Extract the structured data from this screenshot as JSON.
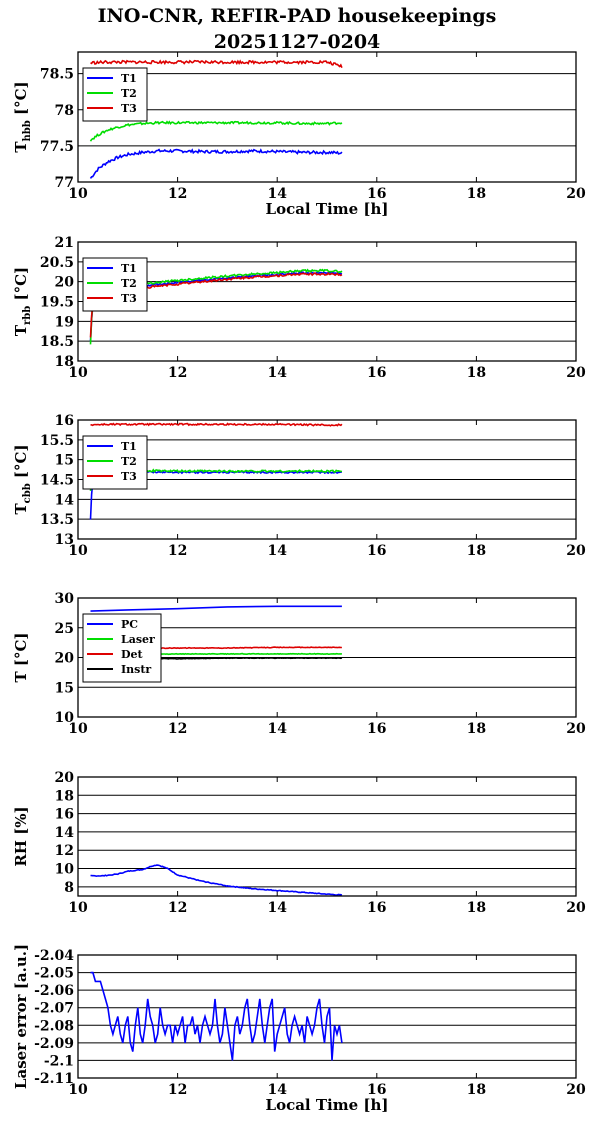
{
  "figure": {
    "title_line1": "INO-CNR, REFIR-PAD housekeepings",
    "title_line2": "20251127-0204"
  },
  "chart_data": [
    {
      "id": "hbb",
      "type": "line",
      "ylabel_main": "T",
      "ylabel_sub": "hbb",
      "ylabel_unit": " [°C]",
      "xlabel": "Local Time [h]",
      "xlim": [
        10,
        20
      ],
      "ylim": [
        77,
        78.8
      ],
      "xticks": [
        10,
        12,
        14,
        16,
        18,
        20
      ],
      "xtick_labels": [
        "10",
        "12",
        "14",
        "16",
        "18",
        "20"
      ],
      "yticks": [
        77,
        77.5,
        78,
        78.5
      ],
      "ytick_labels": [
        "77",
        "77.5",
        "78",
        "78.5"
      ],
      "grid": true,
      "legend": "top-left",
      "series": [
        {
          "name": "T1",
          "color": "#0000ff",
          "x": [
            10.25,
            10.4,
            10.6,
            10.8,
            11.0,
            11.3,
            11.6,
            12.0,
            12.5,
            13.0,
            13.5,
            14.0,
            14.5,
            15.0,
            15.3
          ],
          "y": [
            77.05,
            77.18,
            77.28,
            77.34,
            77.38,
            77.41,
            77.43,
            77.43,
            77.42,
            77.42,
            77.43,
            77.42,
            77.41,
            77.41,
            77.4
          ],
          "noise": 0.02
        },
        {
          "name": "T2",
          "color": "#00dd00",
          "x": [
            10.25,
            10.4,
            10.6,
            10.8,
            11.0,
            11.3,
            11.6,
            12.0,
            12.5,
            13.0,
            13.5,
            14.0,
            14.5,
            15.0,
            15.3
          ],
          "y": [
            77.58,
            77.65,
            77.72,
            77.76,
            77.79,
            77.81,
            77.82,
            77.82,
            77.82,
            77.82,
            77.82,
            77.82,
            77.81,
            77.81,
            77.82
          ],
          "noise": 0.015
        },
        {
          "name": "T3",
          "color": "#dd0000",
          "x": [
            10.25,
            10.6,
            11.0,
            11.5,
            12.0,
            12.5,
            13.0,
            13.5,
            14.0,
            14.5,
            15.0,
            15.3
          ],
          "y": [
            78.65,
            78.66,
            78.66,
            78.66,
            78.66,
            78.66,
            78.66,
            78.66,
            78.66,
            78.66,
            78.66,
            78.6
          ],
          "noise": 0.02
        }
      ]
    },
    {
      "id": "rbb",
      "type": "line",
      "ylabel_main": "T",
      "ylabel_sub": "rbb",
      "ylabel_unit": " [°C]",
      "xlabel": "",
      "xlim": [
        10,
        20
      ],
      "ylim": [
        18,
        21
      ],
      "xticks": [
        10,
        12,
        14,
        16,
        18,
        20
      ],
      "xtick_labels": [
        "10",
        "12",
        "14",
        "16",
        "18",
        "20"
      ],
      "yticks": [
        18,
        18.5,
        19,
        19.5,
        20,
        20.5,
        21
      ],
      "ytick_labels": [
        "18",
        "18.5",
        "19",
        "19.5",
        "20",
        "20.5",
        "21"
      ],
      "grid": true,
      "legend": "top-left",
      "series": [
        {
          "name": "T1",
          "color": "#0000ff",
          "x": [
            10.25,
            10.28,
            10.32,
            10.5,
            11.0,
            11.5,
            12.0,
            12.5,
            13.0,
            13.5,
            14.0,
            14.5,
            15.0,
            15.3
          ],
          "y": [
            18.5,
            19.2,
            19.6,
            19.75,
            19.85,
            19.92,
            19.98,
            20.04,
            20.09,
            20.14,
            20.18,
            20.22,
            20.22,
            20.2
          ],
          "noise": 0.02
        },
        {
          "name": "T2",
          "color": "#00dd00",
          "x": [
            10.25,
            10.28,
            10.32,
            10.5,
            11.0,
            11.5,
            12.0,
            12.5,
            13.0,
            13.5,
            14.0,
            14.5,
            15.0,
            15.3
          ],
          "y": [
            18.4,
            19.25,
            19.65,
            19.8,
            19.9,
            19.97,
            20.03,
            20.09,
            20.14,
            20.19,
            20.23,
            20.27,
            20.28,
            20.25
          ],
          "noise": 0.025
        },
        {
          "name": "T3",
          "color": "#dd0000",
          "x": [
            10.25,
            10.28,
            10.32,
            10.5,
            11.0,
            11.5,
            12.0,
            12.5,
            13.0,
            13.5,
            14.0,
            14.5,
            15.0,
            15.3
          ],
          "y": [
            18.6,
            19.3,
            19.55,
            19.7,
            19.8,
            19.87,
            19.94,
            20.0,
            20.06,
            20.11,
            20.15,
            20.19,
            20.19,
            20.18
          ],
          "noise": 0.025
        }
      ]
    },
    {
      "id": "cbb",
      "type": "line",
      "ylabel_main": "T",
      "ylabel_sub": "cbb",
      "ylabel_unit": " [°C]",
      "xlabel": "",
      "xlim": [
        10,
        20
      ],
      "ylim": [
        13,
        16
      ],
      "xticks": [
        10,
        12,
        14,
        16,
        18,
        20
      ],
      "xtick_labels": [
        "10",
        "12",
        "14",
        "16",
        "18",
        "20"
      ],
      "yticks": [
        13,
        13.5,
        14,
        14.5,
        15,
        15.5,
        16
      ],
      "ytick_labels": [
        "13",
        "13.5",
        "14",
        "14.5",
        "15",
        "15.5",
        "16"
      ],
      "grid": true,
      "legend": "top-left",
      "series": [
        {
          "name": "T1",
          "color": "#0000ff",
          "x": [
            10.25,
            10.28,
            10.32,
            10.5,
            11.0,
            12.0,
            13.0,
            14.0,
            15.0,
            15.3
          ],
          "y": [
            13.5,
            14.3,
            14.6,
            14.7,
            14.7,
            14.68,
            14.68,
            14.68,
            14.68,
            14.68
          ],
          "noise": 0.02
        },
        {
          "name": "T2",
          "color": "#00dd00",
          "x": [
            10.25,
            10.28,
            10.32,
            10.5,
            11.0,
            12.0,
            13.0,
            14.0,
            15.0,
            15.3
          ],
          "y": [
            14.2,
            14.5,
            14.65,
            14.72,
            14.73,
            14.71,
            14.71,
            14.71,
            14.71,
            14.71
          ],
          "noise": 0.025
        },
        {
          "name": "T3",
          "color": "#dd0000",
          "x": [
            10.25,
            10.6,
            11.0,
            12.0,
            13.0,
            14.0,
            15.0,
            15.3
          ],
          "y": [
            15.88,
            15.89,
            15.89,
            15.89,
            15.89,
            15.89,
            15.87,
            15.88
          ],
          "noise": 0.02
        }
      ]
    },
    {
      "id": "temp",
      "type": "line",
      "ylabel_main": "T [°C]",
      "ylabel_sub": "",
      "ylabel_unit": "",
      "xlabel": "",
      "xlim": [
        10,
        20
      ],
      "ylim": [
        10,
        30
      ],
      "xticks": [
        10,
        12,
        14,
        16,
        18,
        20
      ],
      "xtick_labels": [
        "10",
        "12",
        "14",
        "16",
        "18",
        "20"
      ],
      "yticks": [
        10,
        15,
        20,
        25,
        30
      ],
      "ytick_labels": [
        "10",
        "15",
        "20",
        "25",
        "30"
      ],
      "grid": true,
      "legend": "top-left",
      "series": [
        {
          "name": "PC",
          "color": "#0000ff",
          "x": [
            10.25,
            11.0,
            12.0,
            13.0,
            14.0,
            15.3
          ],
          "y": [
            27.8,
            28.0,
            28.2,
            28.5,
            28.6,
            28.6
          ],
          "noise": 0.0
        },
        {
          "name": "Laser",
          "color": "#00dd00",
          "x": [
            10.25,
            11.0,
            12.0,
            13.0,
            14.0,
            15.3
          ],
          "y": [
            20.5,
            20.5,
            20.6,
            20.6,
            20.6,
            20.6
          ],
          "noise": 0.05
        },
        {
          "name": "Det",
          "color": "#dd0000",
          "x": [
            10.25,
            11.0,
            12.0,
            13.0,
            14.0,
            15.3
          ],
          "y": [
            21.4,
            21.5,
            21.6,
            21.6,
            21.7,
            21.7
          ],
          "noise": 0.05
        },
        {
          "name": "Instr",
          "color": "#000000",
          "x": [
            10.25,
            11.0,
            12.0,
            13.0,
            14.0,
            15.3
          ],
          "y": [
            19.7,
            19.8,
            19.8,
            19.9,
            19.9,
            19.9
          ],
          "noise": 0.04
        }
      ]
    },
    {
      "id": "rh",
      "type": "line",
      "ylabel_main": "RH [%]",
      "ylabel_sub": "",
      "ylabel_unit": "",
      "xlabel": "",
      "xlim": [
        10,
        20
      ],
      "ylim": [
        7,
        20
      ],
      "xticks": [
        10,
        12,
        14,
        16,
        18,
        20
      ],
      "xtick_labels": [
        "10",
        "12",
        "14",
        "16",
        "18",
        "20"
      ],
      "yticks": [
        8,
        10,
        12,
        14,
        16,
        18,
        20
      ],
      "ytick_labels": [
        "8",
        "10",
        "12",
        "14",
        "16",
        "18",
        "20"
      ],
      "grid": true,
      "legend": "none",
      "series": [
        {
          "name": "",
          "color": "#0000ff",
          "x": [
            10.25,
            10.5,
            10.8,
            11.0,
            11.3,
            11.5,
            11.6,
            11.8,
            12.0,
            12.5,
            13.0,
            13.5,
            14.0,
            14.5,
            15.0,
            15.3
          ],
          "y": [
            9.2,
            9.2,
            9.4,
            9.7,
            9.9,
            10.3,
            10.4,
            10.0,
            9.3,
            8.6,
            8.1,
            7.8,
            7.6,
            7.4,
            7.2,
            7.1
          ],
          "noise": 0.04
        }
      ]
    },
    {
      "id": "laser",
      "type": "line",
      "ylabel_main": "Laser error [a.u.]",
      "ylabel_sub": "",
      "ylabel_unit": "",
      "xlabel": "Local Time [h]",
      "xlim": [
        10,
        20
      ],
      "ylim": [
        -2.11,
        -2.04
      ],
      "xticks": [
        10,
        12,
        14,
        16,
        18,
        20
      ],
      "xtick_labels": [
        "10",
        "12",
        "14",
        "16",
        "18",
        "20"
      ],
      "yticks": [
        -2.11,
        -2.1,
        -2.09,
        -2.08,
        -2.07,
        -2.06,
        -2.05,
        -2.04
      ],
      "ytick_labels": [
        "-2.11",
        "-2.1",
        "-2.09",
        "-2.08",
        "-2.07",
        "-2.06",
        "-2.05",
        "-2.04"
      ],
      "grid": true,
      "legend": "none",
      "series": [
        {
          "name": "",
          "color": "#0000ff",
          "x": [
            10.25,
            10.3,
            10.35,
            10.45,
            10.5,
            10.55,
            10.6,
            10.65,
            10.7,
            10.75,
            10.8,
            10.85,
            10.9,
            10.95,
            11.0,
            11.05,
            11.1,
            11.15,
            11.2,
            11.25,
            11.3,
            11.35,
            11.4,
            11.45,
            11.5,
            11.55,
            11.6,
            11.65,
            11.7,
            11.75,
            11.8,
            11.85,
            11.9,
            11.95,
            12.0,
            12.05,
            12.1,
            12.15,
            12.2,
            12.25,
            12.3,
            12.35,
            12.4,
            12.45,
            12.5,
            12.55,
            12.6,
            12.65,
            12.7,
            12.75,
            12.8,
            12.85,
            12.9,
            12.95,
            13.0,
            13.05,
            13.1,
            13.15,
            13.2,
            13.25,
            13.3,
            13.35,
            13.4,
            13.45,
            13.5,
            13.55,
            13.6,
            13.65,
            13.7,
            13.75,
            13.8,
            13.85,
            13.9,
            13.95,
            14.0,
            14.05,
            14.1,
            14.15,
            14.2,
            14.25,
            14.3,
            14.35,
            14.4,
            14.45,
            14.5,
            14.55,
            14.6,
            14.65,
            14.7,
            14.75,
            14.8,
            14.85,
            14.9,
            14.95,
            15.0,
            15.05,
            15.1,
            15.15,
            15.2,
            15.25,
            15.3
          ],
          "y": [
            -2.05,
            -2.05,
            -2.055,
            -2.055,
            -2.06,
            -2.065,
            -2.07,
            -2.08,
            -2.085,
            -2.08,
            -2.075,
            -2.085,
            -2.09,
            -2.08,
            -2.075,
            -2.09,
            -2.095,
            -2.08,
            -2.07,
            -2.085,
            -2.09,
            -2.08,
            -2.065,
            -2.075,
            -2.08,
            -2.09,
            -2.085,
            -2.07,
            -2.08,
            -2.085,
            -2.08,
            -2.08,
            -2.09,
            -2.08,
            -2.085,
            -2.08,
            -2.075,
            -2.09,
            -2.08,
            -2.08,
            -2.075,
            -2.085,
            -2.08,
            -2.09,
            -2.08,
            -2.075,
            -2.08,
            -2.085,
            -2.08,
            -2.065,
            -2.08,
            -2.09,
            -2.085,
            -2.07,
            -2.08,
            -2.09,
            -2.1,
            -2.08,
            -2.075,
            -2.085,
            -2.08,
            -2.07,
            -2.065,
            -2.08,
            -2.09,
            -2.085,
            -2.075,
            -2.065,
            -2.08,
            -2.09,
            -2.08,
            -2.07,
            -2.065,
            -2.095,
            -2.085,
            -2.08,
            -2.075,
            -2.07,
            -2.085,
            -2.09,
            -2.08,
            -2.075,
            -2.08,
            -2.085,
            -2.08,
            -2.09,
            -2.075,
            -2.08,
            -2.085,
            -2.08,
            -2.07,
            -2.065,
            -2.08,
            -2.09,
            -2.075,
            -2.07,
            -2.1,
            -2.08,
            -2.085,
            -2.08,
            -2.09
          ],
          "noise": 0.0
        }
      ]
    }
  ]
}
